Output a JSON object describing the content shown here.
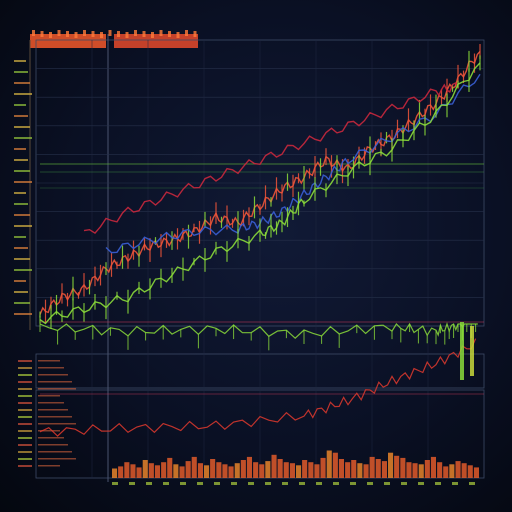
{
  "chart_data": {
    "type": "line",
    "title": "",
    "xlabel": "",
    "ylabel": "",
    "grid": true,
    "panels": [
      {
        "name": "",
        "type": "candlestick-line",
        "ylim": [
          0,
          100
        ],
        "series": [
          {
            "name": "",
            "color": "#f0553a",
            "x": [
              0,
              5,
              10,
              15,
              20,
              25,
              30,
              35,
              40,
              45,
              50,
              55,
              60,
              65,
              70,
              75,
              80,
              85,
              90,
              95,
              100
            ],
            "values": [
              4,
              10,
              13,
              20,
              24,
              28,
              30,
              33,
              38,
              36,
              42,
              48,
              52,
              58,
              55,
              62,
              66,
              72,
              78,
              86,
              96
            ]
          },
          {
            "name": "",
            "color": "#c9283d",
            "x": [
              10,
              20,
              30,
              40,
              50,
              60,
              70,
              80,
              90,
              95
            ],
            "values": [
              32,
              40,
              46,
              52,
              58,
              64,
              70,
              76,
              82,
              84
            ]
          },
          {
            "name": "",
            "color": "#3a5fd6",
            "x": [
              15,
              25,
              35,
              45,
              50,
              55,
              60,
              65,
              70,
              80,
              90,
              100
            ],
            "values": [
              26,
              30,
              33,
              34,
              36,
              40,
              46,
              52,
              58,
              66,
              74,
              88
            ]
          },
          {
            "name": "",
            "color": "#8bdc3a",
            "x": [
              0,
              10,
              20,
              30,
              40,
              50,
              55,
              60,
              70,
              80,
              90,
              100
            ],
            "values": [
              2,
              6,
              10,
              18,
              26,
              32,
              36,
              44,
              54,
              62,
              74,
              92
            ]
          }
        ]
      },
      {
        "name": "",
        "type": "line",
        "ylim": [
          0,
          100
        ],
        "series": [
          {
            "name": "",
            "color": "#e03a2e",
            "x": [
              0,
              20,
              40,
              60,
              70,
              80,
              90,
              100
            ],
            "values": [
              5,
              8,
              10,
              18,
              30,
              46,
              60,
              78
            ]
          },
          {
            "name": "",
            "color": "#8bdc3a",
            "x": [
              0,
              20,
              40,
              60,
              80,
              90,
              95,
              100
            ],
            "values": [
              90,
              86,
              88,
              84,
              90,
              86,
              92,
              98
            ]
          }
        ]
      },
      {
        "name": "",
        "type": "bar",
        "ylim": [
          0,
          100
        ],
        "values": [
          18,
          22,
          30,
          26,
          20,
          34,
          28,
          24,
          30,
          38,
          26,
          22,
          32,
          40,
          28,
          24,
          36,
          30,
          26,
          22,
          28,
          34,
          40,
          30,
          26,
          32,
          44,
          36,
          30,
          28,
          24,
          34,
          30,
          26,
          38,
          52,
          48,
          36,
          30,
          34,
          28,
          26,
          40,
          36,
          32,
          48,
          42,
          38,
          30,
          28,
          26,
          34,
          40,
          30,
          22,
          26,
          32,
          28,
          24,
          20
        ]
      }
    ]
  }
}
